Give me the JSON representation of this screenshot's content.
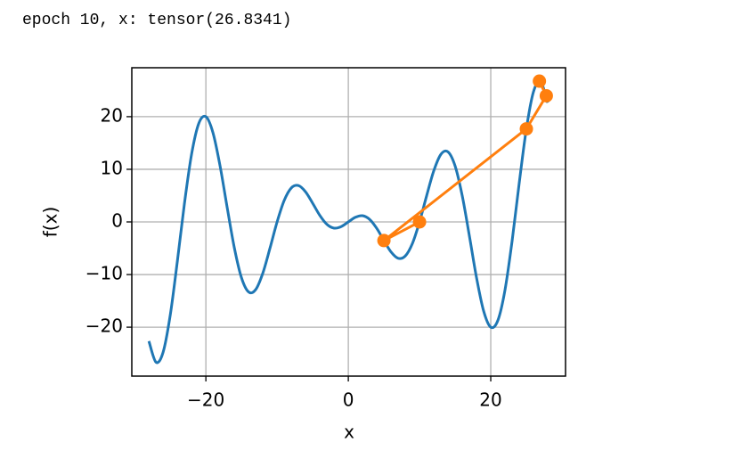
{
  "chart_data": {
    "type": "line",
    "title": "epoch 10, x: tensor(26.8341)",
    "xlabel": "x",
    "ylabel": "f(x)",
    "xlim": [
      -30.4,
      30.5
    ],
    "ylim": [
      -29.3,
      29.3
    ],
    "xticks": [
      {
        "value": -20,
        "label": "−20"
      },
      0,
      20
    ],
    "yticks": [
      {
        "value": -20,
        "label": "−20"
      },
      {
        "value": -10,
        "label": "−10"
      },
      0,
      10,
      20
    ],
    "grid": true,
    "series": [
      {
        "color": "#1f77b4",
        "marker": false,
        "x": [
          -28,
          -27,
          -26,
          -25,
          -24,
          -23,
          -22,
          -21,
          -20,
          -19,
          -18,
          -17,
          -16,
          -15,
          -14,
          -13,
          -12,
          -11,
          -10,
          -9,
          -8,
          -7,
          -6,
          -5,
          -4,
          -3,
          -2,
          -1,
          0,
          1,
          2,
          3,
          4,
          5,
          6,
          7,
          8,
          9,
          10,
          11,
          12,
          13,
          14,
          15,
          16,
          17,
          18,
          19,
          20,
          21,
          22,
          23,
          24,
          25,
          26,
          27,
          28
        ],
        "values": [
          -22.65,
          -26.67,
          -24.73,
          -17.68,
          -7.42,
          3.6,
          12.93,
          18.71,
          20,
          16.93,
          10.58,
          2.66,
          -4.94,
          -10.61,
          -13.31,
          -12.84,
          -9.71,
          -4.99,
          0,
          4.09,
          6.47,
          6.91,
          5.71,
          3.54,
          1.24,
          -0.47,
          -1.18,
          -0.89,
          0,
          0.89,
          1.18,
          0.47,
          -1.24,
          -3.54,
          -5.71,
          -6.91,
          -6.47,
          -4.09,
          0,
          4.99,
          9.71,
          12.84,
          13.31,
          10.61,
          4.94,
          -2.66,
          -10.58,
          -16.93,
          -20,
          -18.71,
          -12.93,
          -3.6,
          7.42,
          17.68,
          24.73,
          26.67,
          22.65
        ]
      },
      {
        "color": "#ff7f0e",
        "marker": true,
        "x": [
          10,
          5,
          25,
          27.8,
          26.83
        ],
        "values": [
          0,
          -3.54,
          17.68,
          23.97,
          26.75
        ]
      }
    ]
  }
}
